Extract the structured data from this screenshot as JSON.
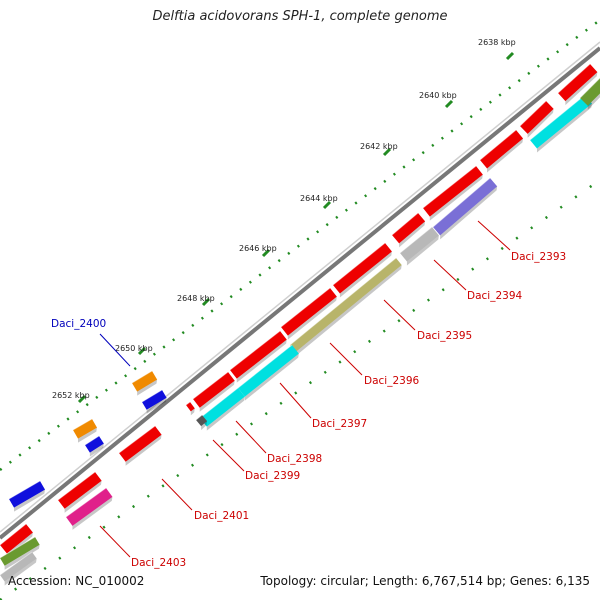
{
  "title": "Delftia acidovorans SPH-1, complete genome",
  "footer": {
    "accession": "Accession: NC_010002",
    "summary": "Topology: circular; Length: 6,767,514 bp; Genes: 6,135"
  },
  "colors": {
    "backbone": "#888888",
    "cds": "#ee0000",
    "cyan": "#00e0e0",
    "purple": "#7a6fd6",
    "olive": "#b8b46a",
    "gray": "#b8b8b8",
    "orange": "#f08a00",
    "blue": "#1010dd",
    "pink": "#e0208a",
    "darkgray": "#555555",
    "green": "#6a9a30",
    "ruler": "#228b22",
    "label": "#cc0000",
    "highlight": "#0000bb"
  },
  "ticks": [
    "2638 kbp",
    "2640 kbp",
    "2642 kbp",
    "2644 kbp",
    "2646 kbp",
    "2648 kbp",
    "2650 kbp",
    "2652 kbp"
  ],
  "gene_labels": [
    {
      "text": "Daci_2393",
      "color": "label"
    },
    {
      "text": "Daci_2394",
      "color": "label"
    },
    {
      "text": "Daci_2395",
      "color": "label"
    },
    {
      "text": "Daci_2396",
      "color": "label"
    },
    {
      "text": "Daci_2397",
      "color": "label"
    },
    {
      "text": "Daci_2398",
      "color": "label"
    },
    {
      "text": "Daci_2399",
      "color": "label"
    },
    {
      "text": "Daci_2400",
      "color": "highlight"
    },
    {
      "text": "Daci_2401",
      "color": "label"
    },
    {
      "text": "Daci_2403",
      "color": "label"
    }
  ]
}
